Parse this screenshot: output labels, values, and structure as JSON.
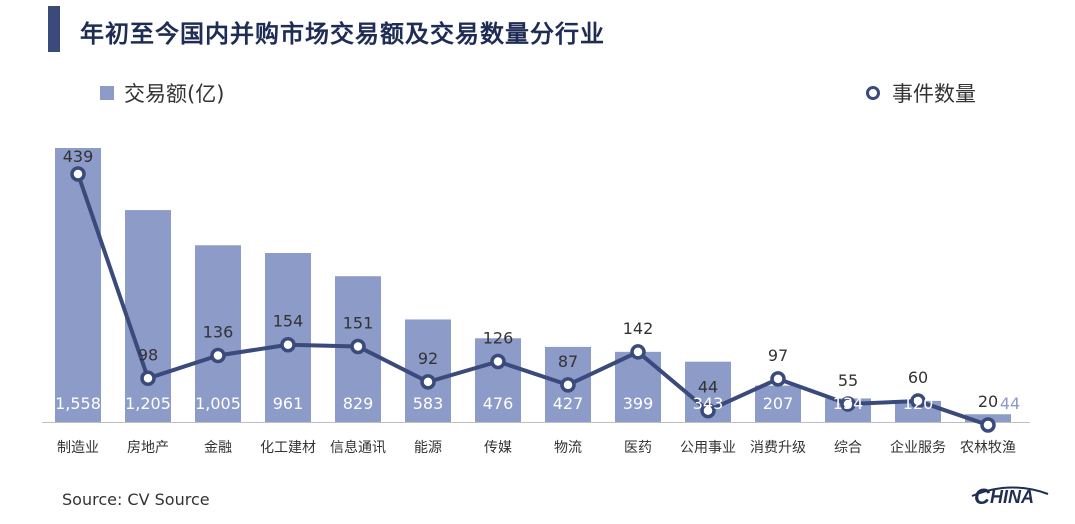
{
  "title": "年初至今国内并购市场交易额及交易数量分行业",
  "source": "Source: CV Source",
  "logo_text": "HINA",
  "colors": {
    "bar": "#8c9bc8",
    "line": "#3a4a7a",
    "title_bar": "#3a4a7a",
    "bar_label": "#ffffff",
    "count_label": "#333333"
  },
  "chart_data": {
    "type": "bar",
    "categories": [
      "制造业",
      "房地产",
      "金融",
      "化工建材",
      "信息通讯",
      "能源",
      "传媒",
      "物流",
      "医药",
      "公用事业",
      "消费升级",
      "综合",
      "企业服务",
      "农林牧渔"
    ],
    "series": [
      {
        "name": "交易额(亿)",
        "type": "bar",
        "axis": "left",
        "values": [
          1558,
          1205,
          1005,
          961,
          829,
          583,
          476,
          427,
          399,
          343,
          207,
          134,
          120,
          44
        ],
        "labels": [
          "1,558",
          "1,205",
          "1,005",
          "961",
          "829",
          "583",
          "476",
          "427",
          "399",
          "343",
          "207",
          "134",
          "120",
          "44"
        ]
      },
      {
        "name": "事件数量",
        "type": "line",
        "axis": "right",
        "values": [
          439,
          98,
          136,
          154,
          151,
          92,
          126,
          87,
          142,
          44,
          97,
          55,
          60,
          20
        ],
        "labels": [
          "439",
          "98",
          "136",
          "154",
          "151",
          "92",
          "126",
          "87",
          "142",
          "44",
          "97",
          "55",
          "60",
          "20"
        ]
      }
    ],
    "left_ylim": [
      0,
      1558
    ],
    "right_ylim": [
      0,
      500
    ],
    "grid": false,
    "legend": "top"
  }
}
